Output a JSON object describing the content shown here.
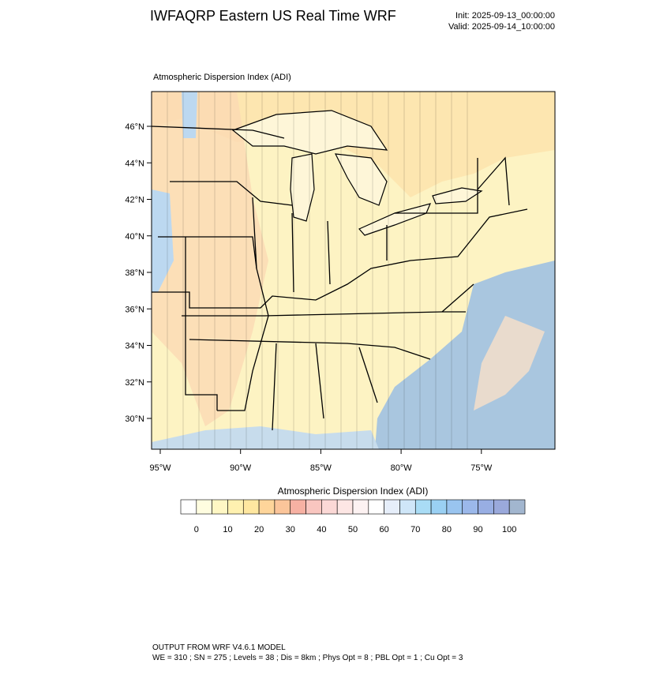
{
  "header": {
    "title": "IWFAQRP Eastern US Real Time WRF",
    "init": "Init: 2025-09-13_00:00:00",
    "valid": "Valid: 2025-09-14_10:00:00"
  },
  "map": {
    "subtitle": "Atmospheric Dispersion Index   (ADI)",
    "lat_labels": [
      "46°N",
      "44°N",
      "42°N",
      "40°N",
      "38°N",
      "36°N",
      "34°N",
      "32°N",
      "30°N"
    ],
    "lon_labels": [
      "95°W",
      "90°W",
      "85°W",
      "80°W",
      "75°W"
    ]
  },
  "colorbar": {
    "title": "Atmospheric Dispersion Index  (ADI)",
    "labels": [
      "0",
      "10",
      "20",
      "30",
      "40",
      "50",
      "60",
      "70",
      "80",
      "90",
      "100"
    ]
  },
  "footer": {
    "line1": "OUTPUT FROM WRF V4.6.1 MODEL",
    "line2": "WE = 310 ; SN = 275 ; Levels = 38 ; Dis = 8km ; Phys Opt = 8 ; PBL Opt = 1 ; Cu Opt = 3"
  }
}
